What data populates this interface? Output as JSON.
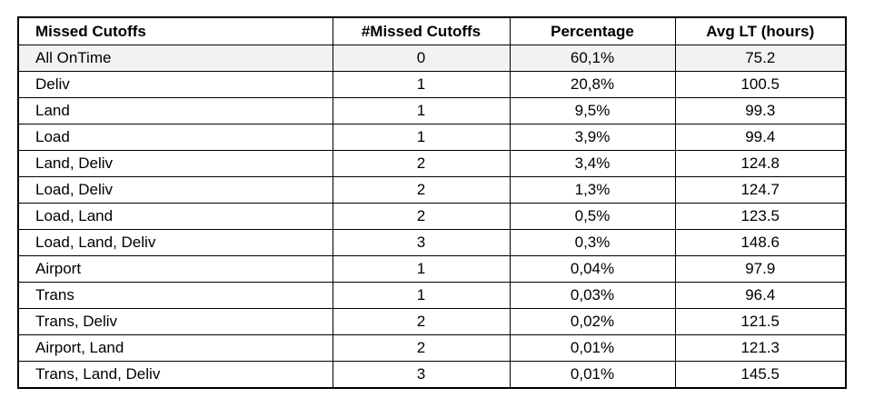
{
  "table": {
    "header": [
      "Missed Cutoffs",
      "#Missed Cutoffs",
      "Percentage",
      "Avg LT (hours)"
    ],
    "rows": [
      [
        "All OnTime",
        "0",
        "60,1%",
        "75.2"
      ],
      [
        "Deliv",
        "1",
        "20,8%",
        "100.5"
      ],
      [
        "Land",
        "1",
        "9,5%",
        "99.3"
      ],
      [
        "Load",
        "1",
        "3,9%",
        "99.4"
      ],
      [
        "Land, Deliv",
        "2",
        "3,4%",
        "124.8"
      ],
      [
        "Load, Deliv",
        "2",
        "1,3%",
        "124.7"
      ],
      [
        "Load, Land",
        "2",
        "0,5%",
        "123.5"
      ],
      [
        "Load, Land, Deliv",
        "3",
        "0,3%",
        "148.6"
      ],
      [
        "Airport",
        "1",
        "0,04%",
        "97.9"
      ],
      [
        "Trans",
        "1",
        "0,03%",
        "96.4"
      ],
      [
        "Trans, Deliv",
        "2",
        "0,02%",
        "121.5"
      ],
      [
        "Airport, Land",
        "2",
        "0,01%",
        "121.3"
      ],
      [
        "Trans, Land, Deliv",
        "3",
        "0,01%",
        "145.5"
      ]
    ]
  }
}
